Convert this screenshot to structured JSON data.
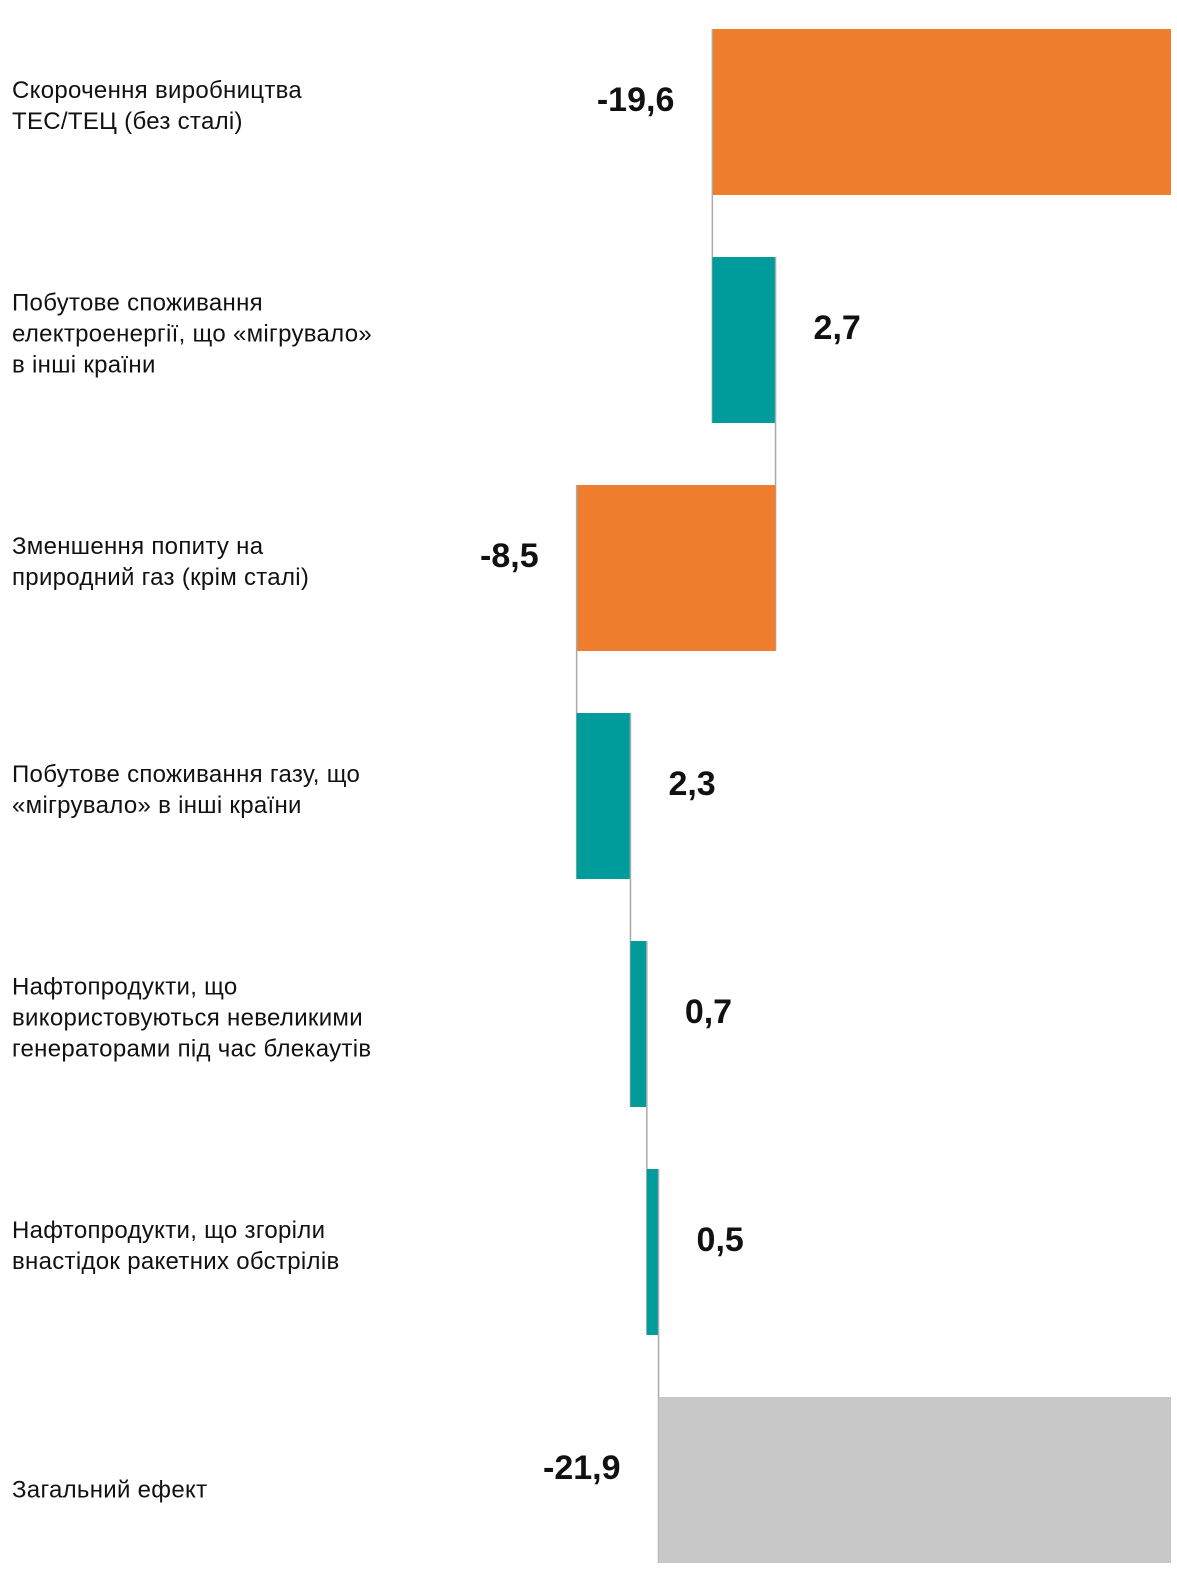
{
  "chart_data": {
    "type": "waterfall",
    "categories": [
      "Скорочення виробництва\nТЕС/ТЕЦ (без сталі)",
      "Побутове споживання\nелектроенергії, що «мігрувало»\nв інші країни",
      "Зменшення попиту на\nприродний газ (крім сталі)",
      "Побутове споживання газу, що\n«мігрувало» в інші країни",
      "Нафтопродукти, що\nвикористовуються невеликими\nгенераторами під час блекаутів",
      "Нафтопродукти, що згоріли\nвнастідок ракетних обстрілів"
    ],
    "values": [
      -19.6,
      2.7,
      -8.5,
      2.3,
      0.7,
      0.5
    ],
    "value_labels": [
      "-19,6",
      "2,7",
      "-8,5",
      "2,3",
      "0,7",
      "0,5"
    ],
    "total": {
      "category": "Загальний ефект",
      "value": -21.9,
      "value_label": "-21,9"
    },
    "increase_color": "#009b9b",
    "decrease_color": "#ef7d2e",
    "total_color": "#c8c8c8",
    "connector_color": "#aaaaaa"
  }
}
